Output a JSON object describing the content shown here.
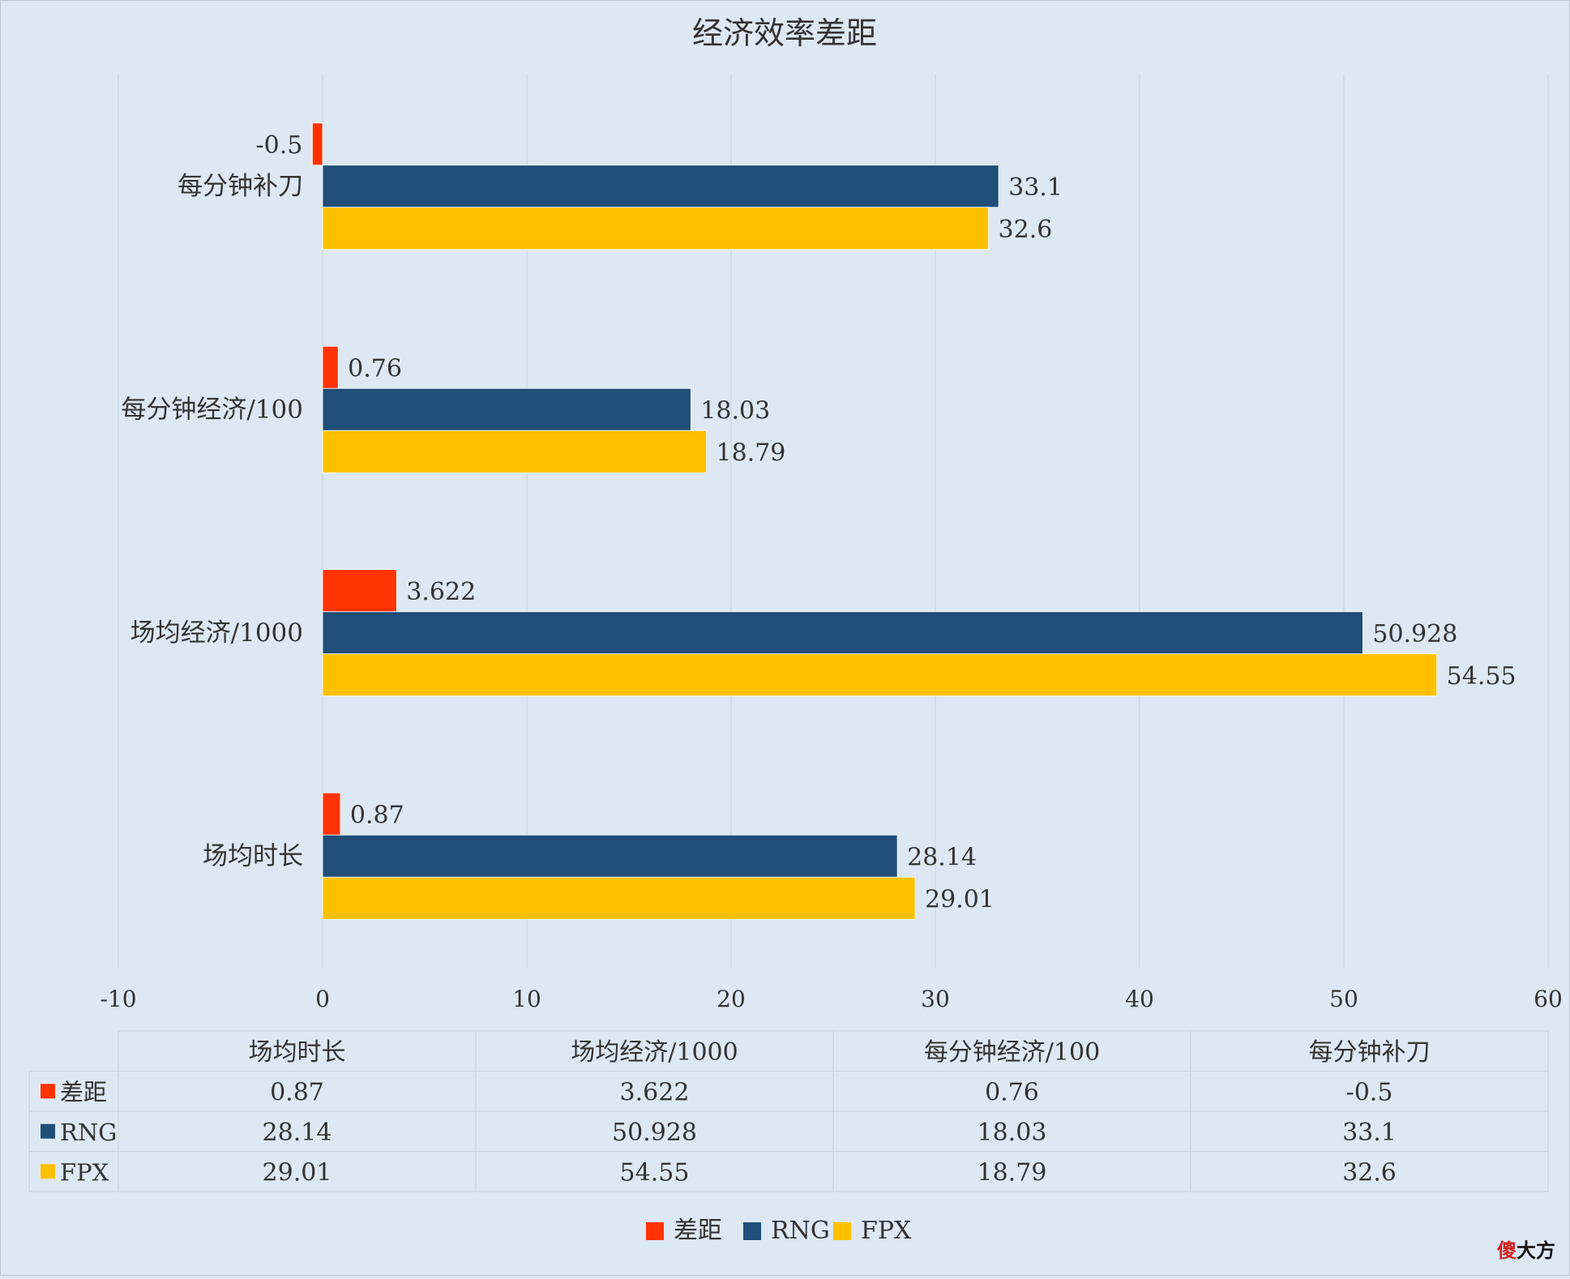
{
  "chart_data": {
    "type": "bar",
    "orientation": "horizontal",
    "title": "经济效率差距",
    "categories": [
      "场均时长",
      "场均经济/1000",
      "每分钟经济/100",
      "每分钟补刀"
    ],
    "series": [
      {
        "name": "差距",
        "color": "#ff3300",
        "values": [
          0.87,
          3.622,
          0.76,
          -0.5
        ],
        "labels": [
          "0.87",
          "3.622",
          "0.76",
          "-0.5"
        ]
      },
      {
        "name": "RNG",
        "color": "#1f4e79",
        "values": [
          28.14,
          50.928,
          18.03,
          33.1
        ],
        "labels": [
          "28.14",
          "50.928",
          "18.03",
          "33.1"
        ]
      },
      {
        "name": "FPX",
        "color": "#ffc000",
        "values": [
          29.01,
          54.55,
          18.79,
          32.6
        ],
        "labels": [
          "29.01",
          "54.55",
          "18.79",
          "32.6"
        ]
      }
    ],
    "xlim": [
      -10,
      60
    ],
    "xticks": [
      -10,
      0,
      10,
      20,
      30,
      40,
      50,
      60
    ],
    "xtick_labels": [
      "-10",
      "0",
      "10",
      "20",
      "30",
      "40",
      "50",
      "60"
    ],
    "grid": true,
    "legend": "bottom",
    "data_table": true
  },
  "watermark": {
    "first": "傻",
    "rest": "大方"
  }
}
